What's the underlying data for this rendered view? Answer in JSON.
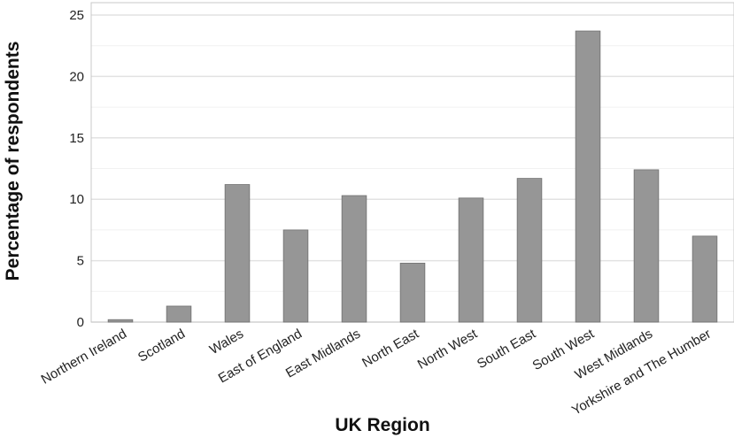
{
  "chart_data": {
    "type": "bar",
    "title": "",
    "xlabel": "UK Region",
    "ylabel": "Percentage of respondents",
    "categories": [
      "Northern Ireland",
      "Scotland",
      "Wales",
      "East of England",
      "East Midlands",
      "North East",
      "North West",
      "South East",
      "South West",
      "West Midlands",
      "Yorkshire and The Humber"
    ],
    "values": [
      0.2,
      1.3,
      11.2,
      7.5,
      10.3,
      4.8,
      10.1,
      11.7,
      23.7,
      12.4,
      7.0
    ],
    "ylim": [
      0,
      25
    ],
    "yticks": [
      0,
      5,
      10,
      15,
      20,
      25
    ],
    "grid": true,
    "legend": "none",
    "colors": {
      "bar": "#969696",
      "bar_edge": "#6f6f6f",
      "grid_major": "#e2e2e2",
      "grid_minor": "#f1f1f1",
      "frame": "#c8c8c8"
    }
  }
}
